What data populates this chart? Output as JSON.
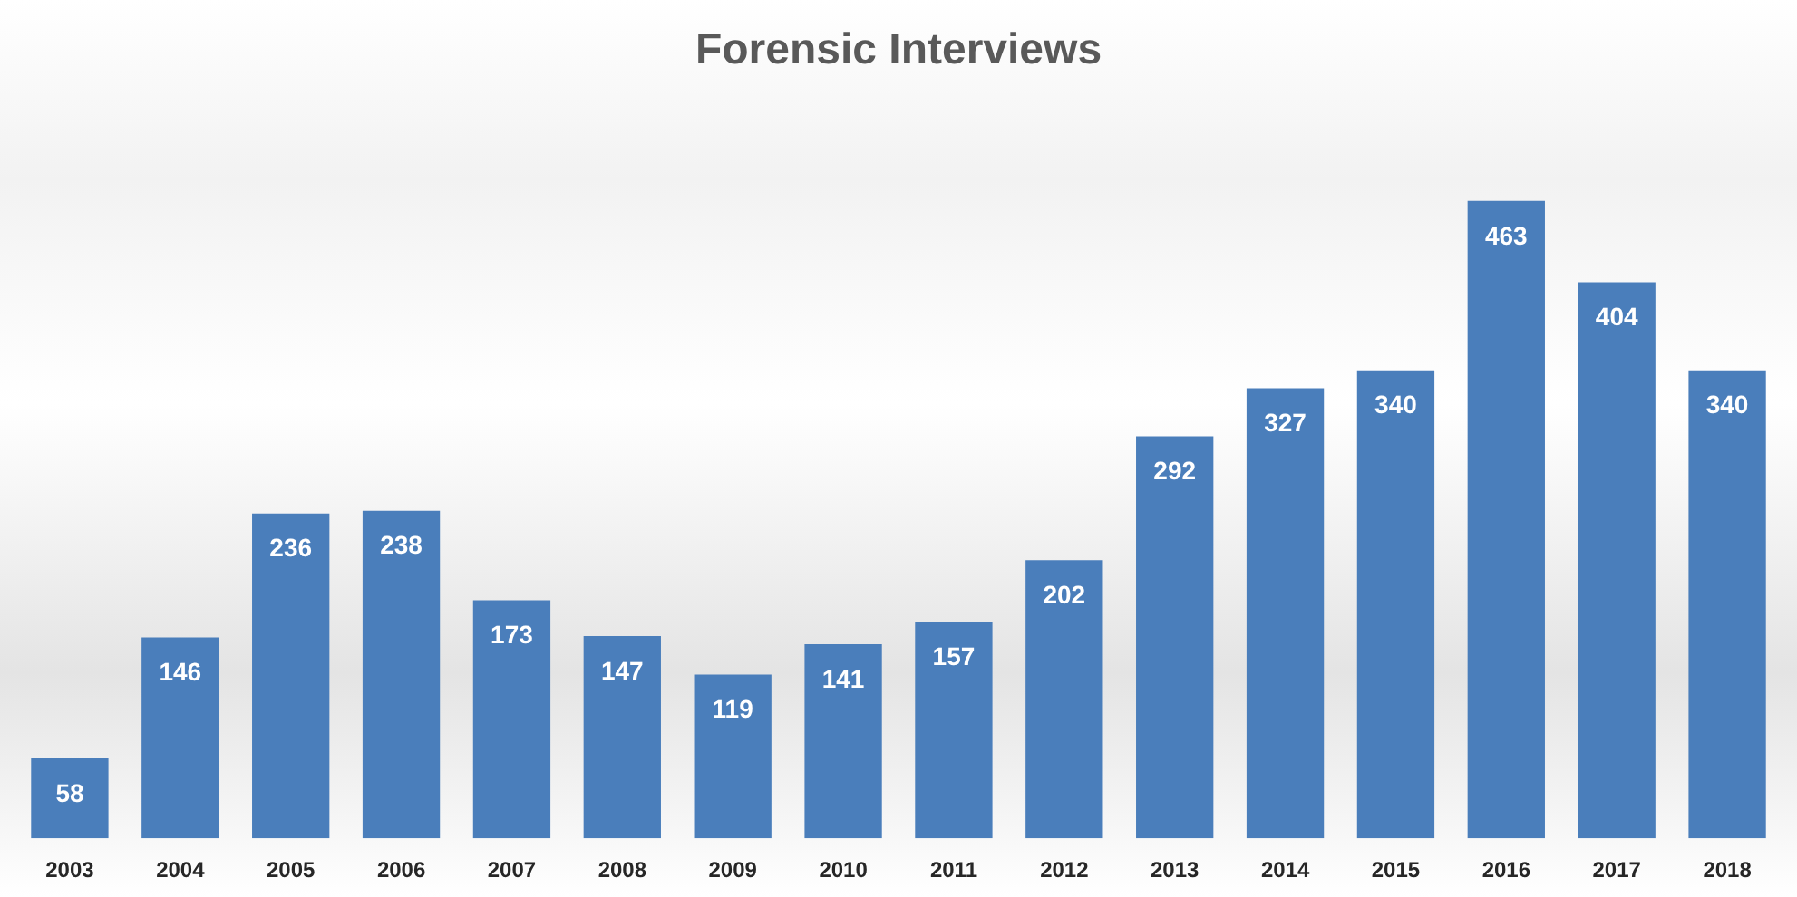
{
  "chart_data": {
    "type": "bar",
    "title": "Forensic Interviews",
    "categories": [
      "2003",
      "2004",
      "2005",
      "2006",
      "2007",
      "2008",
      "2009",
      "2010",
      "2011",
      "2012",
      "2013",
      "2014",
      "2015",
      "2016",
      "2017",
      "2018"
    ],
    "values": [
      58,
      146,
      236,
      238,
      173,
      147,
      119,
      141,
      157,
      202,
      292,
      327,
      340,
      463,
      404,
      340
    ],
    "color": "#4a7ebb",
    "data_labels": true,
    "grid": false,
    "legend": false,
    "tick_labels": "x"
  }
}
